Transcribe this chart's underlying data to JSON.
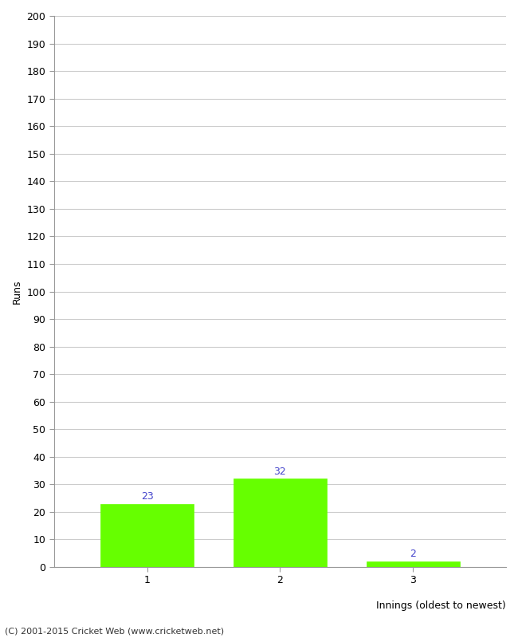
{
  "categories": [
    "1",
    "2",
    "3"
  ],
  "values": [
    23,
    32,
    2
  ],
  "bar_color": "#66ff00",
  "bar_edgecolor": "#66ff00",
  "label_color": "#4444cc",
  "ylabel": "Runs",
  "xlabel": "Innings (oldest to newest)",
  "ylim": [
    0,
    200
  ],
  "yticks": [
    0,
    10,
    20,
    30,
    40,
    50,
    60,
    70,
    80,
    90,
    100,
    110,
    120,
    130,
    140,
    150,
    160,
    170,
    180,
    190,
    200
  ],
  "background_color": "#ffffff",
  "footer": "(C) 2001-2015 Cricket Web (www.cricketweb.net)",
  "grid_color": "#cccccc"
}
